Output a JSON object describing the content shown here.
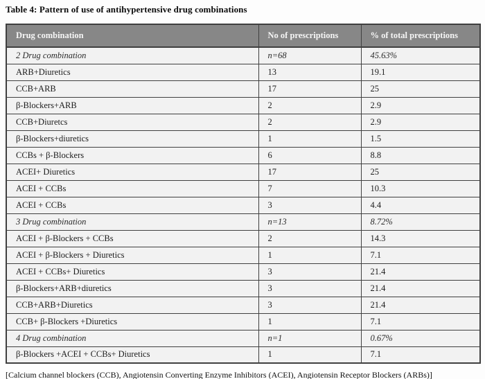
{
  "title": "Table 4: Pattern of use of antihypertensive drug combinations",
  "table": {
    "columns": [
      "Drug combination",
      "No of prescriptions",
      "% of total prescriptions"
    ],
    "rows": [
      {
        "combination": "2 Drug combination",
        "count": "n=68",
        "percent": "45.63%",
        "section": true
      },
      {
        "combination": "ARB+Diuretics",
        "count": "13",
        "percent": "19.1",
        "section": false
      },
      {
        "combination": "CCB+ARB",
        "count": "17",
        "percent": "25",
        "section": false
      },
      {
        "combination": "β-Blockers+ARB",
        "count": "2",
        "percent": "2.9",
        "section": false
      },
      {
        "combination": "CCB+Diuretcs",
        "count": "2",
        "percent": "2.9",
        "section": false
      },
      {
        "combination": "β-Blockers+diuretics",
        "count": "1",
        "percent": "1.5",
        "section": false
      },
      {
        "combination": "CCBs + β-Blockers",
        "count": "6",
        "percent": "8.8",
        "section": false
      },
      {
        "combination": "ACEI+ Diuretics",
        "count": "17",
        "percent": "25",
        "section": false
      },
      {
        "combination": "ACEI + CCBs",
        "count": "7",
        "percent": "10.3",
        "section": false
      },
      {
        "combination": "ACEI + CCBs",
        "count": "3",
        "percent": "4.4",
        "section": false
      },
      {
        "combination": "3 Drug combination",
        "count": "n=13",
        "percent": "8.72%",
        "section": true
      },
      {
        "combination": "ACEI + β-Blockers + CCBs",
        "count": "2",
        "percent": "14.3",
        "section": false
      },
      {
        "combination": "ACEI + β-Blockers + Diuretics",
        "count": "1",
        "percent": "7.1",
        "section": false
      },
      {
        "combination": "ACEI + CCBs+ Diuretics",
        "count": "3",
        "percent": "21.4",
        "section": false
      },
      {
        "combination": "β-Blockers+ARB+diuretics",
        "count": "3",
        "percent": "21.4",
        "section": false
      },
      {
        "combination": "CCB+ARB+Diuretics",
        "count": "3",
        "percent": "21.4",
        "section": false
      },
      {
        "combination": "CCB+ β-Blockers +Diuretics",
        "count": "1",
        "percent": "7.1",
        "section": false
      },
      {
        "combination": "4 Drug combination",
        "count": "n=1",
        "percent": "0.67%",
        "section": true
      },
      {
        "combination": "β-Blockers +ACEI + CCBs+ Diuretics",
        "count": "1",
        "percent": "7.1",
        "section": false
      }
    ]
  },
  "footnote": "[Calcium channel blockers (CCB), Angiotensin Converting Enzyme Inhibitors (ACEI), Angiotensin Receptor Blockers (ARBs)]",
  "colors": {
    "header_bg": "#878787",
    "header_text": "#f6f6f6",
    "row_bg": "#f2f2f2",
    "border": "#3f3f3f"
  }
}
